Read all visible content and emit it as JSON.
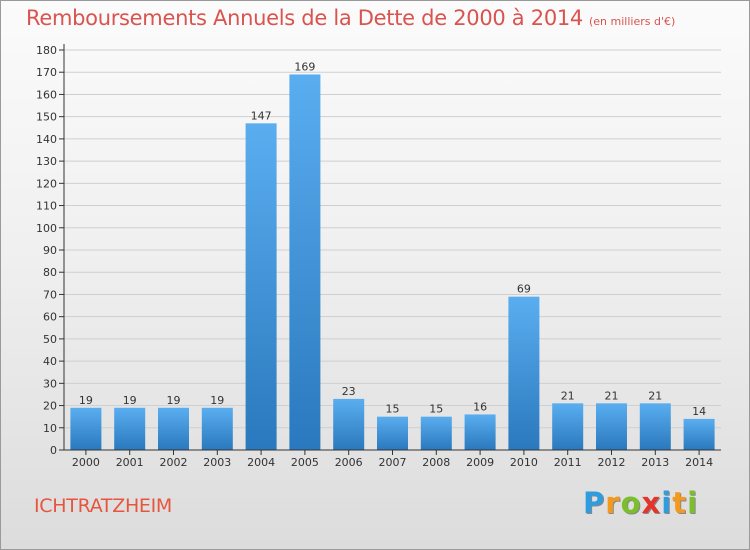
{
  "title": "Remboursements Annuels de la Dette de 2000 à 2014",
  "subtitle": "(en milliers d'€)",
  "commune": "ICHTRATZHEIM",
  "logo": {
    "letters": [
      "P",
      "r",
      "o",
      "x",
      "i",
      "t",
      "i"
    ],
    "colors": [
      "#2e9de0",
      "#f39a1e",
      "#7bbf2a",
      "#e2352b",
      "#2e9de0",
      "#f39a1e",
      "#7bbf2a"
    ]
  },
  "colors": {
    "bar_light": "#5aaef0",
    "bar_dark": "#2a78bd",
    "grid": "#cfcfcf",
    "axis": "#333333"
  },
  "chart_data": {
    "type": "bar",
    "categories": [
      "2000",
      "2001",
      "2002",
      "2003",
      "2004",
      "2005",
      "2006",
      "2007",
      "2008",
      "2009",
      "2010",
      "2011",
      "2012",
      "2013",
      "2014"
    ],
    "values": [
      19,
      19,
      19,
      19,
      147,
      169,
      23,
      15,
      15,
      16,
      69,
      21,
      21,
      21,
      14
    ],
    "ylim": [
      0,
      180
    ],
    "yticks": [
      0,
      10,
      20,
      30,
      40,
      50,
      60,
      70,
      80,
      90,
      100,
      110,
      120,
      130,
      140,
      150,
      160,
      170,
      180
    ],
    "grid": true
  }
}
